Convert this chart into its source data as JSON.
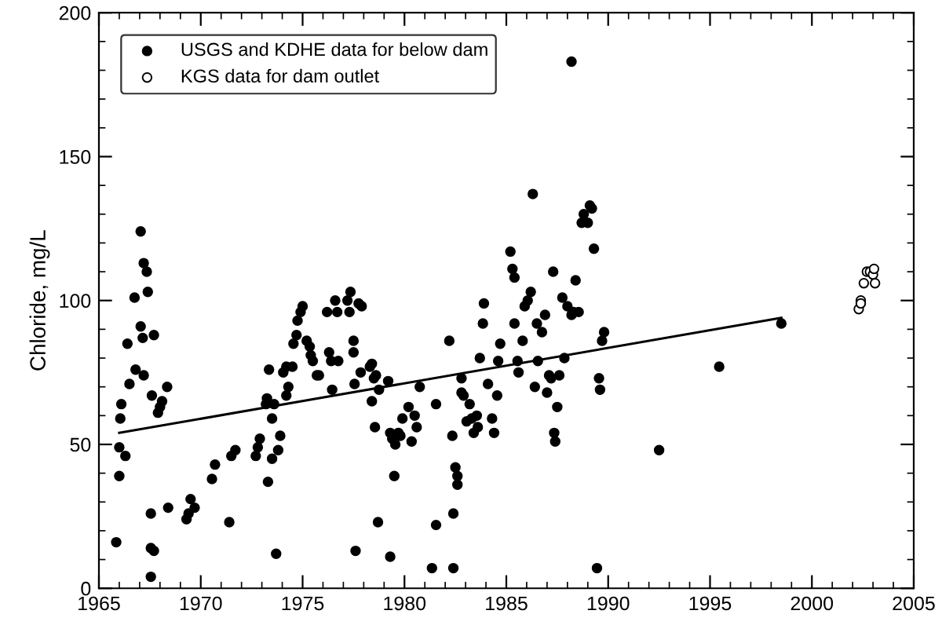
{
  "chart_data": {
    "type": "scatter",
    "ylabel": "Chloride, mg/L",
    "xlim": [
      1965,
      2005
    ],
    "ylim": [
      0,
      200
    ],
    "xticks": [
      1965,
      1970,
      1975,
      1980,
      1985,
      1990,
      1995,
      2000,
      2005
    ],
    "yticks": [
      0,
      50,
      100,
      150,
      200
    ],
    "grid": false,
    "legend": "top left",
    "series": [
      {
        "name": "USGS and KDHE data for below dam",
        "color": "#000000",
        "marker": "circle",
        "x": [
          1965.85,
          1966.0,
          1966.0,
          1966.3,
          1966.05,
          1966.1,
          1966.4,
          1966.5,
          1966.75,
          1966.8,
          1967.05,
          1967.05,
          1967.15,
          1967.2,
          1967.2,
          1967.35,
          1967.4,
          1967.55,
          1967.55,
          1967.55,
          1967.7,
          1967.7,
          1967.6,
          1967.9,
          1968.0,
          1968.1,
          1968.35,
          1968.4,
          1969.3,
          1969.4,
          1969.5,
          1969.7,
          1970.55,
          1970.7,
          1971.4,
          1971.5,
          1971.7,
          1972.7,
          1972.8,
          1972.9,
          1973.3,
          1973.35,
          1973.2,
          1973.25,
          1973.5,
          1973.5,
          1973.7,
          1973.6,
          1973.8,
          1973.9,
          1974.05,
          1974.2,
          1974.2,
          1974.3,
          1974.5,
          1974.55,
          1974.7,
          1974.75,
          1974.9,
          1975.0,
          1975.2,
          1975.35,
          1975.4,
          1975.5,
          1975.7,
          1975.8,
          1976.2,
          1976.3,
          1976.4,
          1976.45,
          1976.6,
          1976.7,
          1976.75,
          1977.6,
          1977.2,
          1977.3,
          1977.35,
          1977.5,
          1977.5,
          1977.55,
          1977.75,
          1977.85,
          1977.9,
          1978.3,
          1978.4,
          1978.5,
          1978.55,
          1978.7,
          1978.4,
          1978.6,
          1978.75,
          1979.2,
          1979.3,
          1979.5,
          1979.3,
          1979.4,
          1979.55,
          1979.7,
          1979.8,
          1979.9,
          1980.2,
          1980.35,
          1980.5,
          1980.6,
          1980.75,
          1981.35,
          1981.55,
          1981.55,
          1982.2,
          1982.35,
          1982.4,
          1982.4,
          1982.5,
          1982.6,
          1982.6,
          1982.8,
          1982.8,
          1982.9,
          1983.05,
          1983.2,
          1983.3,
          1983.4,
          1983.55,
          1983.6,
          1983.7,
          1983.85,
          1983.9,
          1984.1,
          1984.3,
          1984.4,
          1984.55,
          1984.6,
          1984.7,
          1985.2,
          1985.3,
          1985.4,
          1985.4,
          1985.55,
          1985.6,
          1985.8,
          1985.9,
          1986.05,
          1986.2,
          1986.3,
          1986.4,
          1986.5,
          1986.55,
          1986.75,
          1986.9,
          1987.0,
          1987.1,
          1987.2,
          1987.3,
          1987.35,
          1987.4,
          1987.5,
          1987.6,
          1987.75,
          1987.85,
          1988.0,
          1988.2,
          1988.2,
          1988.3,
          1988.4,
          1988.55,
          1988.7,
          1988.8,
          1989.0,
          1989.1,
          1989.2,
          1989.3,
          1989.45,
          1989.55,
          1989.6,
          1989.7,
          1989.8,
          1992.5,
          1995.45,
          1998.5
        ],
        "values": [
          16,
          39,
          49,
          46,
          59,
          64,
          85,
          71,
          101,
          76,
          124,
          91,
          87,
          74,
          113,
          110,
          103,
          26,
          4,
          14,
          13,
          88,
          67,
          61,
          63,
          65,
          70,
          28,
          24,
          26,
          31,
          28,
          38,
          43,
          23,
          46,
          48,
          46,
          49,
          52,
          37,
          76,
          64,
          66,
          59,
          45,
          12,
          64,
          48,
          53,
          75,
          67,
          77,
          70,
          77,
          85,
          88,
          93,
          96,
          98,
          86,
          84,
          81,
          79,
          74,
          74,
          96,
          82,
          79,
          69,
          100,
          96,
          79,
          13,
          100,
          96,
          103,
          86,
          82,
          71,
          99,
          75,
          98,
          77,
          78,
          73,
          56,
          23,
          65,
          74,
          69,
          72,
          11,
          39,
          54,
          52,
          50,
          54,
          53,
          59,
          63,
          51,
          60,
          56,
          70,
          7,
          22,
          64,
          86,
          53,
          26,
          7,
          42,
          39,
          36,
          73,
          68,
          67,
          58,
          64,
          59,
          54,
          60,
          56,
          80,
          92,
          99,
          71,
          59,
          54,
          67,
          79,
          85,
          117,
          111,
          108,
          92,
          79,
          75,
          86,
          98,
          100,
          103,
          137,
          70,
          92,
          79,
          89,
          95,
          68,
          74,
          73,
          110,
          54,
          51,
          63,
          74,
          101,
          80,
          98,
          183,
          95,
          96,
          107,
          96,
          127,
          130,
          127,
          133,
          132,
          118,
          7,
          73,
          69,
          86,
          89,
          48,
          77,
          92
        ]
      },
      {
        "name": "KGS data for dam outlet",
        "color": "#ffffff",
        "marker": "circle",
        "x": [
          2002.3,
          2002.4,
          2002.55,
          2002.7,
          2002.85,
          2003.0,
          2003.1,
          2002.4,
          2003.05
        ],
        "values": [
          97,
          100,
          106,
          110,
          110,
          109,
          106,
          99,
          111
        ]
      },
      {
        "type": "line",
        "color": "#000000",
        "marker": "none",
        "x": [
          1966,
          1998.5
        ],
        "values": [
          54,
          94
        ]
      }
    ]
  }
}
